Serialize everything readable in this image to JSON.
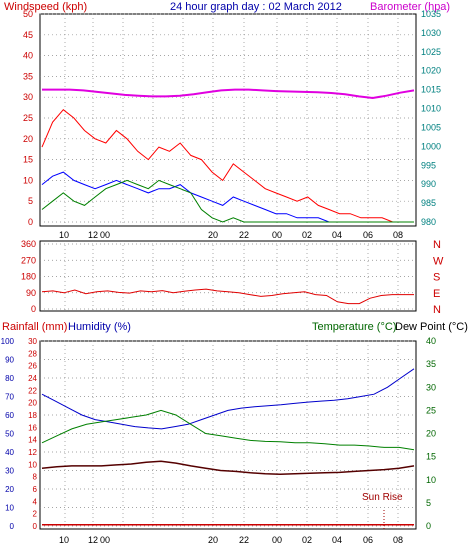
{
  "title": "24 hour graph day : 02 March 2012",
  "colors": {
    "wind": "#ff0000",
    "gust_low": "#008000",
    "avg": "#0000ff",
    "baro": "#e000e0",
    "dir": "#e00000",
    "temp": "#0000cc",
    "dew": "#008000",
    "hum": "#550000",
    "sun": "#a00000"
  },
  "time_ticks": [
    "10",
    "12",
    "00",
    "20",
    "22",
    "00",
    "02",
    "04",
    "06",
    "08"
  ],
  "chart_data": [
    {
      "type": "line",
      "title": "24 hour graph day : 02 March 2012",
      "ylabel": "Windspeed (kph)",
      "y2label": "Barometer (hpa)",
      "ylim": [
        0,
        50
      ],
      "y2lim": [
        980,
        1035
      ],
      "y_ticks": [
        "0",
        "5",
        "10",
        "15",
        "20",
        "25",
        "30",
        "35",
        "40",
        "45",
        "50"
      ],
      "y2_ticks": [
        "980",
        "985",
        "990",
        "995",
        "1000",
        "1005",
        "1010",
        "1015",
        "1020",
        "1025",
        "1030",
        "1035"
      ],
      "grid": true,
      "series": [
        {
          "key": "gust",
          "values": [
            18,
            24,
            27,
            25,
            22,
            20,
            19,
            22,
            20,
            17,
            15,
            18,
            17,
            19,
            16,
            15,
            12,
            10,
            14,
            12,
            10,
            8,
            7,
            6,
            5,
            6,
            4,
            3,
            2,
            2,
            1,
            1,
            1,
            0,
            0,
            0
          ]
        },
        {
          "key": "avg",
          "values": [
            9,
            11,
            12,
            10,
            9,
            8,
            9,
            10,
            9,
            8,
            7,
            8,
            8,
            9,
            7,
            6,
            5,
            4,
            6,
            5,
            4,
            3,
            2,
            2,
            1,
            1,
            1,
            0,
            0,
            0,
            0,
            0,
            0,
            0,
            0,
            0
          ]
        },
        {
          "key": "speed",
          "values": [
            3,
            5,
            7,
            5,
            4,
            6,
            8,
            9,
            10,
            9,
            8,
            10,
            9,
            8,
            7,
            3,
            1,
            0,
            1,
            0,
            0,
            0,
            0,
            0,
            0,
            0,
            0,
            0,
            0,
            0,
            0,
            0,
            0,
            0,
            0,
            0
          ]
        },
        {
          "key": "baro",
          "values": [
            1015,
            1015,
            1015,
            1014.8,
            1014.4,
            1014,
            1013.6,
            1013.4,
            1013.2,
            1013.2,
            1013.4,
            1013.8,
            1014.3,
            1014.8,
            1015,
            1015,
            1014.8,
            1014.6,
            1014.5,
            1014.4,
            1014.3,
            1014.1,
            1013.8,
            1013.2,
            1012.8,
            1013.4,
            1014.2,
            1014.8
          ]
        }
      ]
    },
    {
      "type": "scatter",
      "y_ticks": [
        "0",
        "90",
        "180",
        "270",
        "360"
      ],
      "right_labels": [
        "N",
        "W",
        "S",
        "E",
        "N"
      ],
      "ylim": [
        0,
        360
      ],
      "grid": true,
      "series": [
        {
          "key": "dir",
          "values": [
            95,
            100,
            90,
            105,
            85,
            95,
            100,
            92,
            88,
            100,
            95,
            102,
            90,
            98,
            105,
            110,
            100,
            95,
            90,
            80,
            70,
            75,
            85,
            90,
            95,
            80,
            75,
            40,
            30,
            30,
            60,
            75,
            80,
            80,
            80
          ]
        }
      ]
    },
    {
      "type": "line",
      "ylabel_left": "Rainfall (mm)",
      "ylabel_left2": "Humidity (%)",
      "ylabel_right": "Temperature (°C)",
      "ylabel_right2": "Dew Point (°C)",
      "annotation": "Sun Rise",
      "rain_ticks": [
        "0",
        "2",
        "4",
        "6",
        "8",
        "10",
        "12",
        "14",
        "16",
        "18",
        "20",
        "22",
        "24",
        "26",
        "28",
        "30"
      ],
      "hum_ticks": [
        "0",
        "10",
        "20",
        "30",
        "40",
        "50",
        "60",
        "70",
        "80",
        "90",
        "100"
      ],
      "temp_ticks": [
        "0",
        "5",
        "10",
        "15",
        "20",
        "25",
        "30",
        "35",
        "40"
      ],
      "ylim": [
        0,
        100
      ],
      "y2lim": [
        0,
        40
      ],
      "grid": true,
      "series": [
        {
          "key": "temp",
          "values": [
            28.5,
            27,
            25.5,
            24,
            23,
            22.5,
            22,
            21.5,
            21.2,
            21,
            21.5,
            22,
            23,
            24,
            25,
            25.5,
            25.8,
            26,
            26.2,
            26.5,
            26.8,
            27,
            27.2,
            27.5,
            28,
            28.5,
            30,
            32,
            34
          ]
        },
        {
          "key": "dew",
          "values": [
            18,
            19.5,
            21,
            22,
            22.5,
            23,
            23.5,
            24,
            25,
            24,
            22,
            20,
            19.5,
            19,
            18.5,
            18.3,
            18.2,
            18,
            18,
            17.8,
            17.5,
            17.5,
            17.3,
            17,
            17,
            16.5
          ]
        },
        {
          "key": "hum",
          "values": [
            12.5,
            12.8,
            13,
            13,
            13,
            13.2,
            13.4,
            13.8,
            14,
            13.6,
            13,
            12.5,
            12,
            11.8,
            11.5,
            11.3,
            11.2,
            11.3,
            11.4,
            11.5,
            11.6,
            11.8,
            12,
            12.2,
            12.5,
            13
          ]
        },
        {
          "key": "rain",
          "values": [
            0.2,
            0.2,
            0.2,
            0.2,
            0.2,
            0.2,
            0.2,
            0.2,
            0.2,
            0.2
          ]
        }
      ]
    }
  ]
}
